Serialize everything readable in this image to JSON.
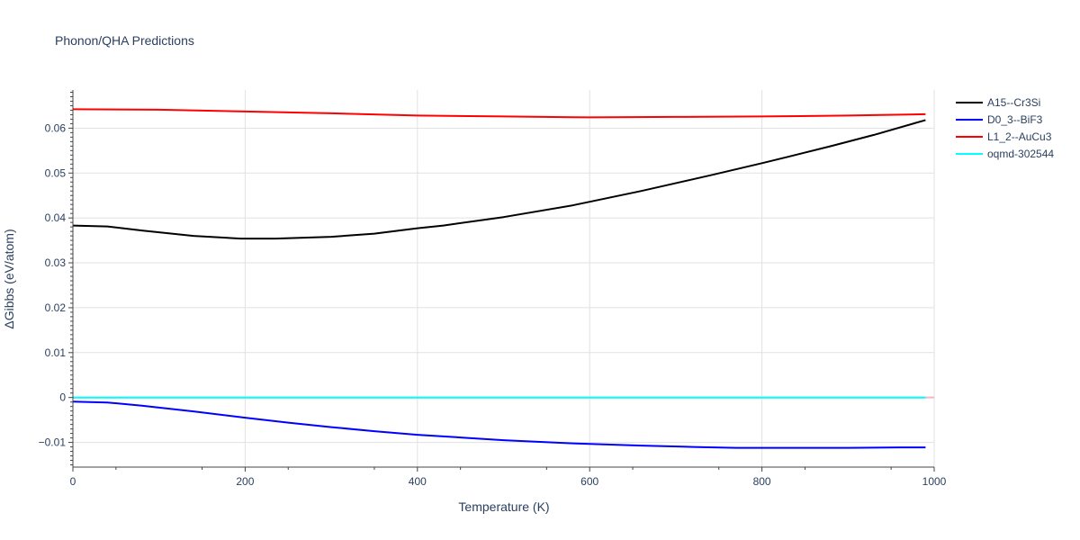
{
  "chart_data": {
    "type": "line",
    "title": "Phonon/QHA Predictions",
    "xlabel": "Temperature (K)",
    "ylabel": "ΔGibbs (eV/atom)",
    "xlim": [
      0,
      1000
    ],
    "ylim": [
      -0.0155,
      0.0685
    ],
    "xticks": [
      0,
      200,
      400,
      600,
      800,
      1000
    ],
    "xtick_labels": [
      "0",
      "200",
      "400",
      "600",
      "800",
      "1000"
    ],
    "yticks": [
      -0.01,
      0,
      0.01,
      0.02,
      0.03,
      0.04,
      0.05,
      0.06
    ],
    "ytick_labels": [
      "−0.01",
      "0",
      "0.01",
      "0.02",
      "0.03",
      "0.04",
      "0.05",
      "0.06"
    ],
    "grid": true,
    "legend_position": "top-right",
    "series": [
      {
        "name": "A15--Cr3Si",
        "color": "#000000",
        "x": [
          0,
          40,
          80,
          140,
          195,
          235,
          300,
          350,
          400,
          430,
          500,
          580,
          660,
          740,
          800,
          830,
          880,
          930,
          990
        ],
        "y": [
          0.0383,
          0.0381,
          0.0372,
          0.036,
          0.0354,
          0.0354,
          0.0358,
          0.0365,
          0.0377,
          0.0383,
          0.0402,
          0.0428,
          0.046,
          0.0495,
          0.0522,
          0.0536,
          0.056,
          0.0585,
          0.0618
        ]
      },
      {
        "name": "D0_3--BiF3",
        "color": "#0000ff",
        "x": [
          0,
          40,
          80,
          140,
          200,
          250,
          300,
          350,
          400,
          450,
          500,
          580,
          660,
          720,
          770,
          820,
          900,
          960,
          990
        ],
        "y": [
          -0.0009,
          -0.0011,
          -0.0018,
          -0.0031,
          -0.0045,
          -0.0056,
          -0.0066,
          -0.0075,
          -0.0083,
          -0.0089,
          -0.0095,
          -0.0102,
          -0.0107,
          -0.011,
          -0.0112,
          -0.0112,
          -0.0112,
          -0.0111,
          -0.0111
        ]
      },
      {
        "name": "L1_2--AuCu3",
        "color": "#ff0000",
        "x": [
          0,
          100,
          200,
          300,
          400,
          500,
          600,
          700,
          800,
          900,
          990
        ],
        "y": [
          0.0642,
          0.0641,
          0.0637,
          0.0633,
          0.0628,
          0.0626,
          0.0624,
          0.0625,
          0.0626,
          0.0628,
          0.0631
        ]
      },
      {
        "name": "oqmd-302544",
        "color": "#00ffff",
        "x": [
          0,
          990
        ],
        "y": [
          0,
          0
        ]
      }
    ]
  }
}
